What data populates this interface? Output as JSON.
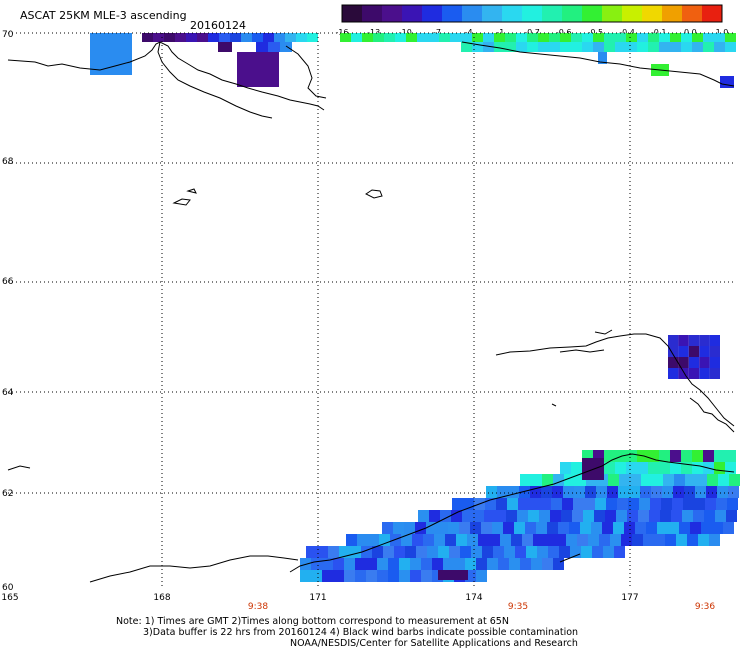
{
  "header": {
    "title": "ASCAT 25KM MLE-3 ascending",
    "date": "20160124"
  },
  "colorbar": {
    "colors": [
      "#2a0a3a",
      "#3d0a6a",
      "#4b0f8c",
      "#3a14b4",
      "#1f2ce0",
      "#1a5cf0",
      "#2a8cf0",
      "#33b4f0",
      "#2ad8f0",
      "#22f0e0",
      "#22f0b0",
      "#22f080",
      "#33f033",
      "#88f011",
      "#c8f000",
      "#f0d800",
      "#f0a000",
      "#f06010",
      "#e82010"
    ],
    "labels": [
      "-16",
      "-13",
      "-10",
      "-7",
      "-4",
      "-1",
      "-0.7",
      "-0.6",
      "-0.5",
      "-0.4",
      "-0.1",
      "0.0",
      "1.0"
    ]
  },
  "axes": {
    "lat_labels": [
      "70",
      "68",
      "66",
      "64",
      "62",
      "60"
    ],
    "lon_labels": [
      "165",
      "168",
      "171",
      "174",
      "177"
    ]
  },
  "pass_times": [
    "9:38",
    "9:35",
    "9:36"
  ],
  "notes": {
    "line1": "Note: 1) Times are GMT 2)Times along bottom correspond to measurement at 65N",
    "line2": "3)Data buffer is 22 hrs from 20160124 4) Black wind barbs indicate possible contamination",
    "line3": "NOAA/NESDIS/Center for Satellite Applications and Research"
  },
  "colors": {
    "time_label": "#cc3300",
    "grid": "#000000",
    "coast": "#000000"
  }
}
